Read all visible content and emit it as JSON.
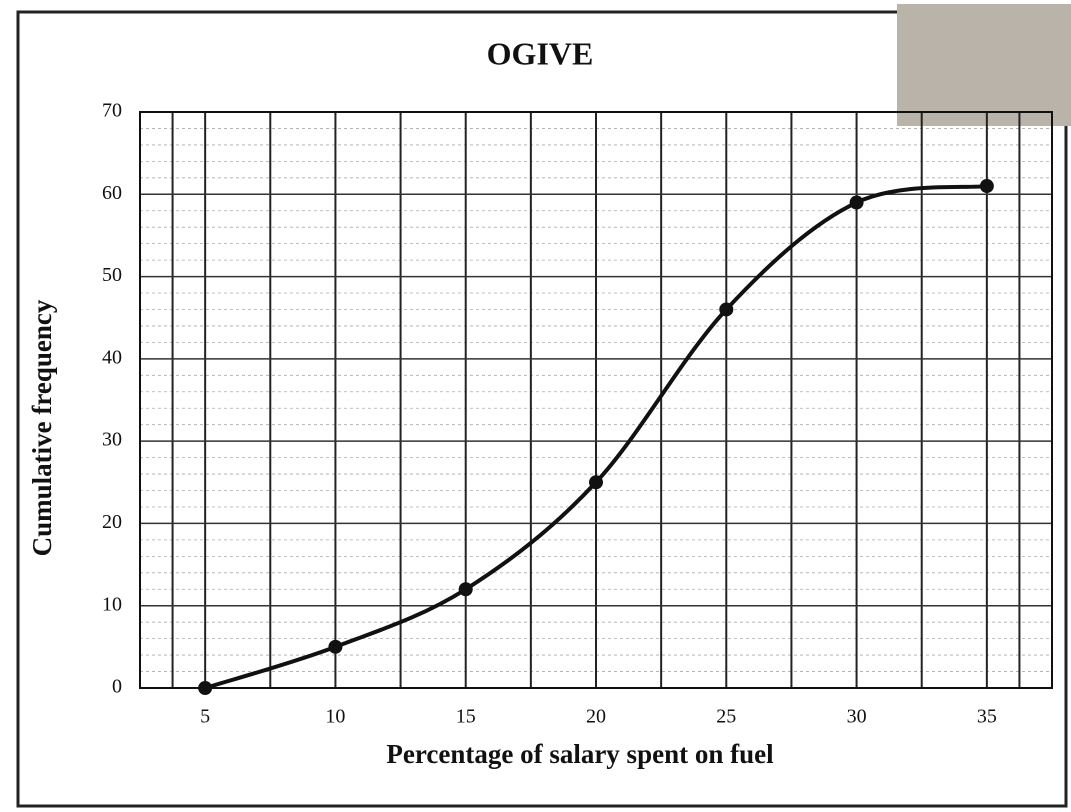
{
  "chart_data": {
    "type": "line",
    "title": "OGIVE",
    "x_label": "Percentage of salary spent on fuel",
    "y_label": "Cumulative frequency",
    "x": [
      5,
      10,
      15,
      20,
      25,
      30,
      35
    ],
    "series": [
      {
        "name": "Cumulative frequency",
        "color": "#111111",
        "values": [
          0,
          5,
          12,
          25,
          46,
          59,
          61
        ]
      }
    ],
    "xlim": [
      2.5,
      37.5
    ],
    "xticks": [
      5,
      10,
      15,
      20,
      25,
      30,
      35
    ],
    "ylim": [
      0,
      70
    ],
    "yticks": [
      0,
      10,
      20,
      30,
      40,
      50,
      60,
      70
    ],
    "grid": true,
    "smooth": true
  }
}
